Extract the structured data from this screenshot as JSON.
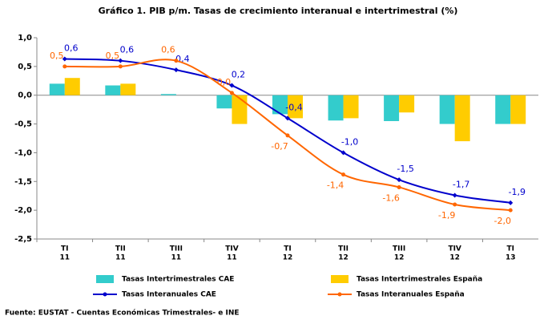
{
  "chart_data": {
    "type": "bar_line",
    "title": "Gráfico 1. PIB p/m. Tasas de crecimiento interanual e intertrimestral (%)",
    "categories": [
      [
        "TI",
        "11"
      ],
      [
        "TII",
        "11"
      ],
      [
        "TIII",
        "11"
      ],
      [
        "TIV",
        "11"
      ],
      [
        "TI",
        "12"
      ],
      [
        "TII",
        "12"
      ],
      [
        "TIII",
        "12"
      ],
      [
        "TIV",
        "12"
      ],
      [
        "TI",
        "13"
      ]
    ],
    "ylim": [
      -2.5,
      1.0
    ],
    "yticks": [
      {
        "value": 1.0,
        "label": "1,0"
      },
      {
        "value": 0.5,
        "label": "0,5"
      },
      {
        "value": 0.0,
        "label": "0,0"
      },
      {
        "value": -0.5,
        "label": "-0,5"
      },
      {
        "value": -1.0,
        "label": "-1,0"
      },
      {
        "value": -1.5,
        "label": "-1,5"
      },
      {
        "value": -2.0,
        "label": "-2,0"
      },
      {
        "value": -2.5,
        "label": "-2,5"
      }
    ],
    "series": [
      {
        "name": "Tasas Intertrimestrales CAE",
        "type": "bar",
        "color": "#33cccc",
        "values": [
          0.2,
          0.17,
          0.02,
          -0.23,
          -0.33,
          -0.44,
          -0.45,
          -0.5,
          -0.5
        ]
      },
      {
        "name": "Tasas Intertrimestrales España",
        "type": "bar",
        "color": "#ffcc00",
        "values": [
          0.3,
          0.2,
          0.0,
          -0.5,
          -0.4,
          -0.4,
          -0.3,
          -0.8,
          -0.5
        ]
      },
      {
        "name": "Tasas Interanuales CAE",
        "type": "line",
        "color": "#0000cc",
        "values": [
          0.63,
          0.6,
          0.44,
          0.17,
          -0.4,
          -1.0,
          -1.47,
          -1.74,
          -1.87
        ],
        "value_labels": [
          "0,6",
          "0,6",
          "0,4",
          "0,2",
          "-0,4",
          "-1,0",
          "-1,5",
          "-1,7",
          "-1,9"
        ]
      },
      {
        "name": "Tasas Interanuales España",
        "type": "line",
        "color": "#ff6600",
        "values": [
          0.5,
          0.5,
          0.6,
          0.04,
          -0.7,
          -1.38,
          -1.6,
          -1.9,
          -2.0
        ],
        "value_labels": [
          "0,5",
          "0,5",
          "0,6",
          "0,0",
          "-0,7",
          "-1,4",
          "-1,6",
          "-1,9",
          "-2,0"
        ]
      }
    ],
    "source": "Fuente: EUSTAT - Cuentas Económicas Trimestrales- e INE"
  }
}
